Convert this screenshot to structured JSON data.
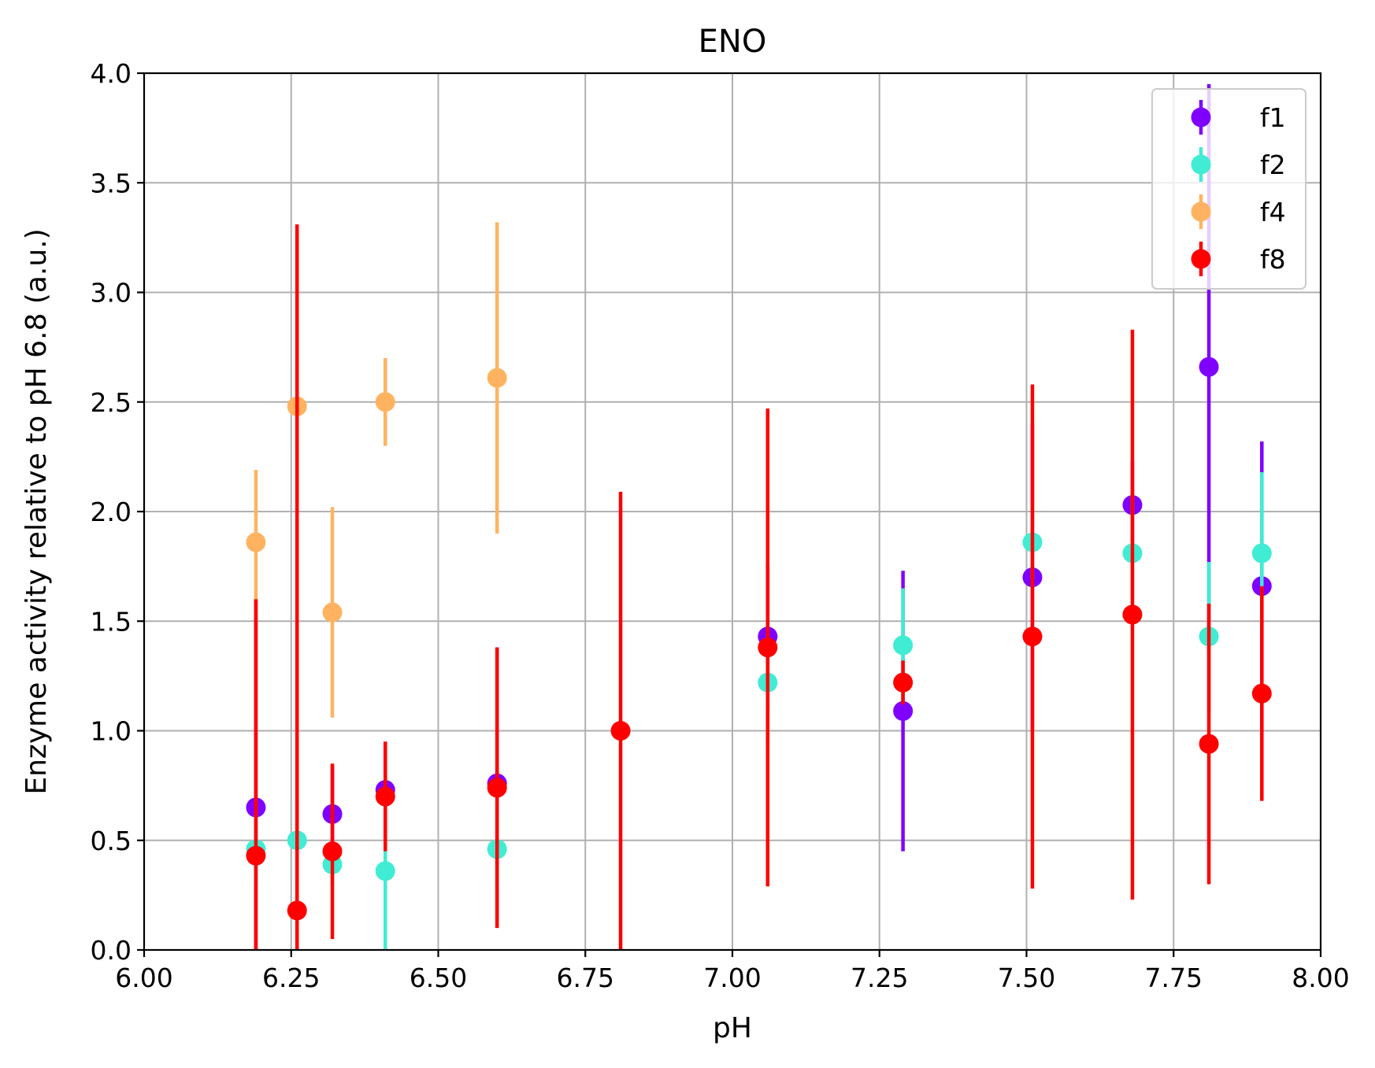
{
  "chart_data": {
    "type": "scatter",
    "title": "ENO",
    "xlabel": "pH",
    "ylabel": "Enzyme activity relative to pH 6.8 (a.u.)",
    "xlim": [
      6.0,
      8.0
    ],
    "ylim": [
      0.0,
      4.0
    ],
    "xticks": [
      "6.00",
      "6.25",
      "6.50",
      "6.75",
      "7.00",
      "7.25",
      "7.50",
      "7.75",
      "8.00"
    ],
    "yticks": [
      "0.0",
      "0.5",
      "1.0",
      "1.5",
      "2.0",
      "2.5",
      "3.0",
      "3.5",
      "4.0"
    ],
    "grid": true,
    "legend_position": "top-right",
    "error_bars": true,
    "series": [
      {
        "name": "f1",
        "color": "#8000ff",
        "points": [
          {
            "x": 6.19,
            "y": 0.65,
            "err": 0.95
          },
          {
            "x": 6.32,
            "y": 0.62,
            "err": 0.22
          },
          {
            "x": 6.41,
            "y": 0.73,
            "err": 0.22
          },
          {
            "x": 6.6,
            "y": 0.76,
            "err": 0.62
          },
          {
            "x": 7.06,
            "y": 1.43,
            "err": 0.33
          },
          {
            "x": 7.29,
            "y": 1.09,
            "err": 0.64
          },
          {
            "x": 7.51,
            "y": 1.7,
            "err": 0.7
          },
          {
            "x": 7.68,
            "y": 2.03,
            "err": 0.2
          },
          {
            "x": 7.81,
            "y": 2.66,
            "err": 1.29
          },
          {
            "x": 7.9,
            "y": 1.66,
            "err": 0.66
          }
        ]
      },
      {
        "name": "f2",
        "color": "#40ecd4",
        "points": [
          {
            "x": 6.19,
            "y": 0.46,
            "err": 0.16
          },
          {
            "x": 6.26,
            "y": 0.5,
            "err": 0.17
          },
          {
            "x": 6.32,
            "y": 0.39,
            "err": 0.1
          },
          {
            "x": 6.41,
            "y": 0.36,
            "err": 0.36
          },
          {
            "x": 6.6,
            "y": 0.46,
            "err": 0.17
          },
          {
            "x": 7.06,
            "y": 1.22,
            "err": 0.3
          },
          {
            "x": 7.29,
            "y": 1.39,
            "err": 0.26
          },
          {
            "x": 7.51,
            "y": 1.86,
            "err": 0.17
          },
          {
            "x": 7.68,
            "y": 1.81,
            "err": 0.28
          },
          {
            "x": 7.81,
            "y": 1.43,
            "err": 0.34
          },
          {
            "x": 7.9,
            "y": 1.81,
            "err": 0.37
          }
        ]
      },
      {
        "name": "f4",
        "color": "#ffb360",
        "points": [
          {
            "x": 6.19,
            "y": 1.86,
            "err": 0.33
          },
          {
            "x": 6.26,
            "y": 2.48,
            "err": 0.2
          },
          {
            "x": 6.32,
            "y": 1.54,
            "err": 0.48
          },
          {
            "x": 6.41,
            "y": 2.5,
            "err": 0.2
          },
          {
            "x": 6.6,
            "y": 2.61,
            "err": 0.71
          }
        ]
      },
      {
        "name": "f8",
        "color": "#ff0000",
        "points": [
          {
            "x": 6.19,
            "y": 0.43,
            "err": 1.17
          },
          {
            "x": 6.26,
            "y": 0.18,
            "err": 3.13
          },
          {
            "x": 6.32,
            "y": 0.45,
            "err": 0.4
          },
          {
            "x": 6.41,
            "y": 0.7,
            "err": 0.25
          },
          {
            "x": 6.6,
            "y": 0.74,
            "err": 0.64
          },
          {
            "x": 6.81,
            "y": 1.0,
            "err": 1.09
          },
          {
            "x": 7.06,
            "y": 1.38,
            "err": 1.09
          },
          {
            "x": 7.29,
            "y": 1.22,
            "err": 0.1
          },
          {
            "x": 7.51,
            "y": 1.43,
            "err": 1.15
          },
          {
            "x": 7.68,
            "y": 1.53,
            "err": 1.3
          },
          {
            "x": 7.81,
            "y": 0.94,
            "err": 0.64
          },
          {
            "x": 7.9,
            "y": 1.17,
            "err": 0.49
          }
        ]
      }
    ]
  }
}
